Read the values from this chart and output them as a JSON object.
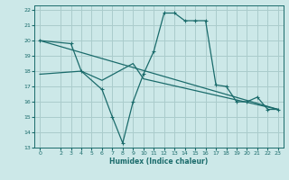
{
  "title": "",
  "xlabel": "Humidex (Indice chaleur)",
  "bg_color": "#cce8e8",
  "grid_color": "#aacccc",
  "line_color": "#1a6b6b",
  "xlim": [
    -0.5,
    23.5
  ],
  "ylim": [
    13,
    22.3
  ],
  "xticks": [
    0,
    2,
    3,
    4,
    5,
    6,
    7,
    8,
    9,
    10,
    11,
    12,
    13,
    14,
    15,
    16,
    17,
    18,
    19,
    20,
    21,
    22,
    23
  ],
  "yticks": [
    13,
    14,
    15,
    16,
    17,
    18,
    19,
    20,
    21,
    22
  ],
  "zigzag_x": [
    0,
    3,
    4,
    6,
    7,
    8,
    9,
    10,
    11,
    12,
    13,
    14,
    15,
    16,
    17,
    18,
    19,
    20,
    21,
    22,
    23
  ],
  "zigzag_y": [
    20.0,
    19.8,
    18.0,
    16.8,
    15.0,
    13.3,
    16.0,
    17.8,
    19.3,
    21.8,
    21.8,
    21.3,
    21.3,
    21.3,
    17.1,
    17.0,
    16.0,
    16.0,
    16.3,
    15.5,
    15.5
  ],
  "upper_line_x": [
    0,
    23
  ],
  "upper_line_y": [
    20.0,
    15.5
  ],
  "lower_line_x": [
    0,
    4,
    6,
    9,
    10,
    23
  ],
  "lower_line_y": [
    17.8,
    18.0,
    17.4,
    18.5,
    17.5,
    15.5
  ]
}
